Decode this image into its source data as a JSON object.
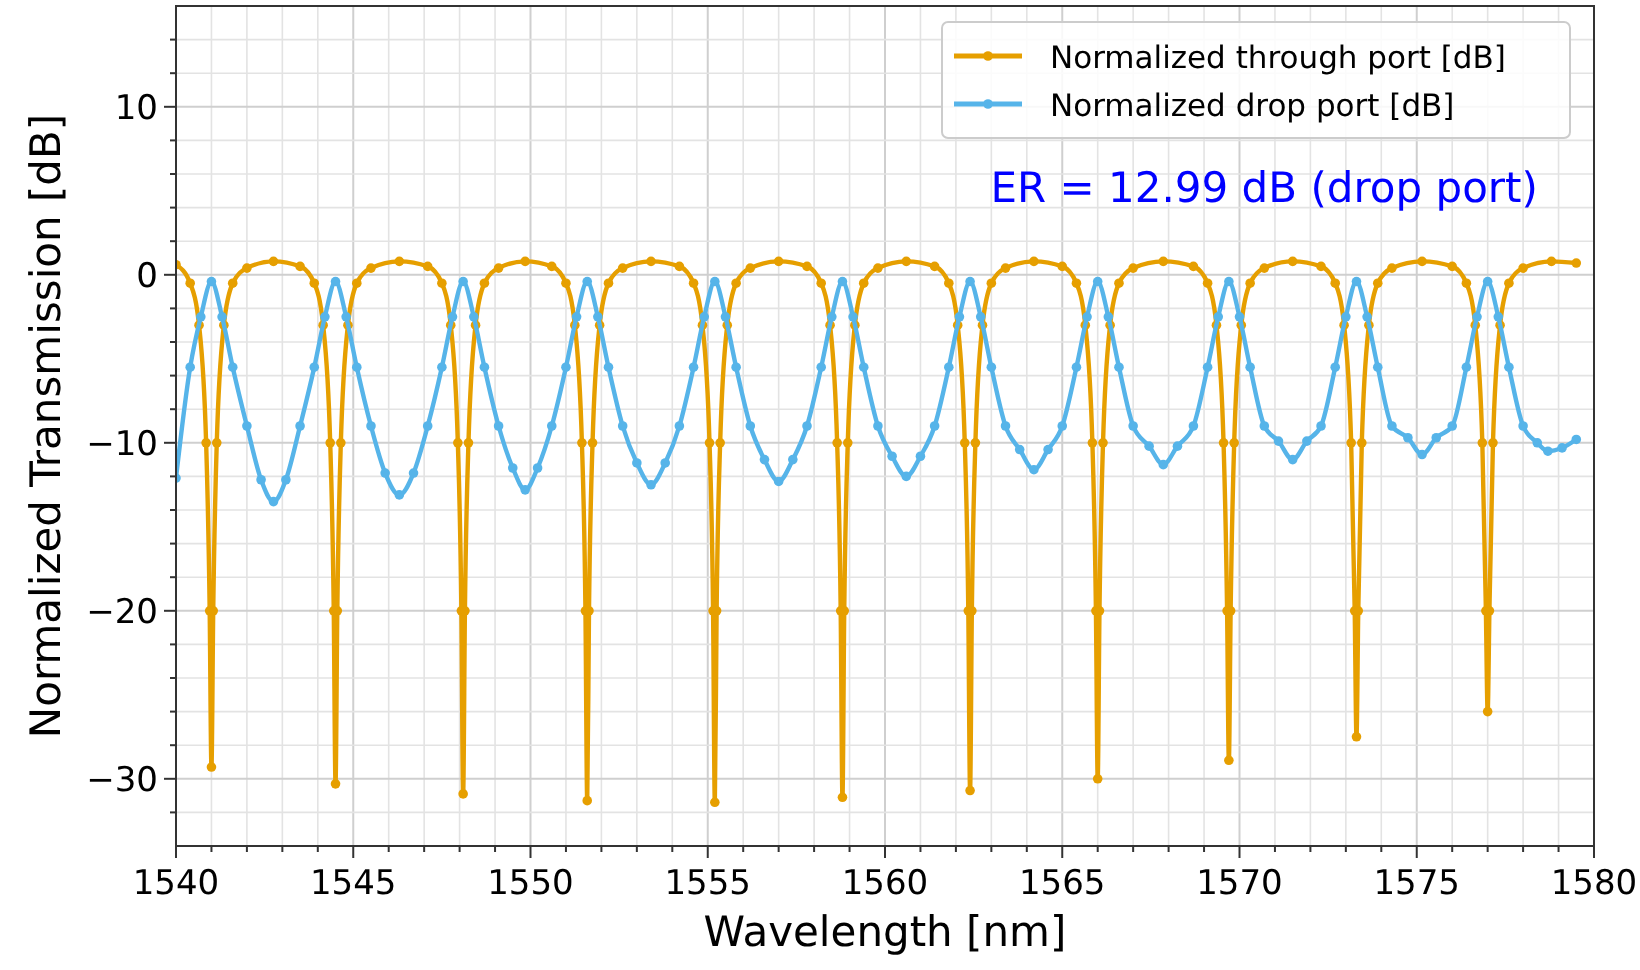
{
  "chart_data": {
    "type": "line",
    "xlabel": "Wavelength [nm]",
    "ylabel": "Normalized Transmission [dB]",
    "xlim": [
      1540,
      1580
    ],
    "ylim": [
      -34,
      16
    ],
    "xticks": [
      1540,
      {
        "value": 1541,
        "label": null
      },
      {
        "value": 1542,
        "label": null
      },
      {
        "value": 1543,
        "label": null
      },
      {
        "value": 1544,
        "label": null
      },
      1545,
      {
        "value": 1546,
        "label": null
      },
      {
        "value": 1547,
        "label": null
      },
      {
        "value": 1548,
        "label": null
      },
      {
        "value": 1549,
        "label": null
      },
      1550,
      {
        "value": 1551,
        "label": null
      },
      {
        "value": 1552,
        "label": null
      },
      {
        "value": 1553,
        "label": null
      },
      {
        "value": 1554,
        "label": null
      },
      1555,
      {
        "value": 1556,
        "label": null
      },
      {
        "value": 1557,
        "label": null
      },
      {
        "value": 1558,
        "label": null
      },
      {
        "value": 1559,
        "label": null
      },
      1560,
      {
        "value": 1561,
        "label": null
      },
      {
        "value": 1562,
        "label": null
      },
      {
        "value": 1563,
        "label": null
      },
      {
        "value": 1564,
        "label": null
      },
      1565,
      {
        "value": 1566,
        "label": null
      },
      {
        "value": 1567,
        "label": null
      },
      {
        "value": 1568,
        "label": null
      },
      {
        "value": 1569,
        "label": null
      },
      1570,
      {
        "value": 1571,
        "label": null
      },
      {
        "value": 1572,
        "label": null
      },
      {
        "value": 1573,
        "label": null
      },
      {
        "value": 1574,
        "label": null
      },
      1575,
      {
        "value": 1576,
        "label": null
      },
      {
        "value": 1577,
        "label": null
      },
      {
        "value": 1578,
        "label": null
      },
      {
        "value": 1579,
        "label": null
      },
      1580
    ],
    "yticks": [
      {
        "value": -32,
        "label": null
      },
      {
        "value": -30,
        "label": "−30"
      },
      {
        "value": -28,
        "label": null
      },
      {
        "value": -26,
        "label": null
      },
      {
        "value": -24,
        "label": null
      },
      {
        "value": -22,
        "label": null
      },
      {
        "value": -20,
        "label": "−20"
      },
      {
        "value": -18,
        "label": null
      },
      {
        "value": -16,
        "label": null
      },
      {
        "value": -14,
        "label": null
      },
      {
        "value": -12,
        "label": null
      },
      {
        "value": -10,
        "label": "−10"
      },
      {
        "value": -8,
        "label": null
      },
      {
        "value": -6,
        "label": null
      },
      {
        "value": -4,
        "label": null
      },
      {
        "value": -2,
        "label": null
      },
      0,
      {
        "value": 2,
        "label": null
      },
      {
        "value": 4,
        "label": null
      },
      {
        "value": 6,
        "label": null
      },
      {
        "value": 8,
        "label": null
      },
      10,
      {
        "value": 12,
        "label": null
      },
      {
        "value": 14,
        "label": null
      }
    ],
    "grid": true,
    "legend": "top right",
    "marker": "circle",
    "line_style": "solid",
    "annotations": [
      "ER = 12.99 dB (drop port)"
    ],
    "series": [
      {
        "name": "Normalized through port [dB]",
        "color": "#e69f00",
        "x": [
          1540.0,
          1540.4,
          1540.65,
          1540.85,
          1540.95,
          1541.0,
          1541.05,
          1541.15,
          1541.35,
          1541.6,
          1542.0,
          1542.75,
          1543.5,
          1543.9,
          1544.15,
          1544.35,
          1544.45,
          1544.5,
          1544.55,
          1544.65,
          1544.85,
          1545.1,
          1545.5,
          1546.3,
          1547.1,
          1547.5,
          1547.75,
          1547.95,
          1548.05,
          1548.1,
          1548.15,
          1548.25,
          1548.45,
          1548.7,
          1549.1,
          1549.85,
          1550.6,
          1551.0,
          1551.25,
          1551.45,
          1551.55,
          1551.6,
          1551.65,
          1551.75,
          1551.95,
          1552.2,
          1552.6,
          1553.4,
          1554.2,
          1554.6,
          1554.85,
          1555.05,
          1555.15,
          1555.2,
          1555.25,
          1555.35,
          1555.55,
          1555.8,
          1556.2,
          1557.0,
          1557.8,
          1558.2,
          1558.45,
          1558.65,
          1558.75,
          1558.8,
          1558.85,
          1558.95,
          1559.15,
          1559.4,
          1559.8,
          1560.6,
          1561.4,
          1561.8,
          1562.05,
          1562.25,
          1562.35,
          1562.4,
          1562.45,
          1562.55,
          1562.75,
          1563.0,
          1563.4,
          1564.2,
          1565.0,
          1565.4,
          1565.65,
          1565.85,
          1565.95,
          1566.0,
          1566.05,
          1566.15,
          1566.35,
          1566.6,
          1567.0,
          1567.85,
          1568.7,
          1569.1,
          1569.35,
          1569.55,
          1569.65,
          1569.7,
          1569.75,
          1569.85,
          1570.05,
          1570.3,
          1570.7,
          1571.5,
          1572.3,
          1572.7,
          1572.95,
          1573.15,
          1573.25,
          1573.3,
          1573.35,
          1573.45,
          1573.65,
          1573.9,
          1574.3,
          1575.15,
          1576.0,
          1576.4,
          1576.65,
          1576.85,
          1576.95,
          1577.0,
          1577.05,
          1577.15,
          1577.35,
          1577.6,
          1578.0,
          1578.8,
          1579.5
        ],
        "values": [
          0.6,
          -0.5,
          -3,
          -10,
          -20,
          -29.3,
          -20,
          -10,
          -3,
          -0.5,
          0.4,
          0.8,
          0.5,
          -0.5,
          -3,
          -10,
          -20,
          -30.3,
          -20,
          -10,
          -3,
          -0.5,
          0.4,
          0.8,
          0.5,
          -0.5,
          -3,
          -10,
          -20,
          -30.9,
          -20,
          -10,
          -3,
          -0.5,
          0.4,
          0.8,
          0.5,
          -0.5,
          -3,
          -10,
          -20,
          -31.3,
          -20,
          -10,
          -3,
          -0.5,
          0.4,
          0.8,
          0.5,
          -0.5,
          -3,
          -10,
          -20,
          -31.4,
          -20,
          -10,
          -3,
          -0.5,
          0.4,
          0.8,
          0.5,
          -0.5,
          -3,
          -10,
          -20,
          -31.1,
          -20,
          -10,
          -3,
          -0.5,
          0.4,
          0.8,
          0.5,
          -0.5,
          -3,
          -10,
          -20,
          -30.7,
          -20,
          -10,
          -3,
          -0.5,
          0.4,
          0.8,
          0.5,
          -0.5,
          -3,
          -10,
          -20,
          -30.0,
          -20,
          -10,
          -3,
          -0.5,
          0.4,
          0.8,
          0.5,
          -0.5,
          -3,
          -10,
          -20,
          -28.9,
          -20,
          -10,
          -3,
          -0.5,
          0.4,
          0.8,
          0.5,
          -0.5,
          -3,
          -10,
          -20,
          -27.5,
          -20,
          -10,
          -3,
          -0.5,
          0.4,
          0.8,
          0.5,
          -0.5,
          -3,
          -10,
          -20,
          -26.0,
          -20,
          -10,
          -3,
          -0.5,
          0.4,
          0.8,
          0.7
        ]
      },
      {
        "name": "Normalized drop port [dB]",
        "color": "#56b4e9",
        "x": [
          1540.0,
          1540.4,
          1540.7,
          1541.0,
          1541.3,
          1541.6,
          1542.0,
          1542.4,
          1542.75,
          1543.1,
          1543.5,
          1543.9,
          1544.2,
          1544.5,
          1544.8,
          1545.1,
          1545.5,
          1545.9,
          1546.3,
          1546.7,
          1547.1,
          1547.5,
          1547.8,
          1548.1,
          1548.4,
          1548.7,
          1549.1,
          1549.5,
          1549.85,
          1550.2,
          1550.6,
          1551.0,
          1551.3,
          1551.6,
          1551.9,
          1552.2,
          1552.6,
          1553.0,
          1553.4,
          1553.8,
          1554.2,
          1554.6,
          1554.9,
          1555.2,
          1555.5,
          1555.8,
          1556.2,
          1556.6,
          1557.0,
          1557.4,
          1557.8,
          1558.2,
          1558.5,
          1558.8,
          1559.1,
          1559.4,
          1559.8,
          1560.2,
          1560.6,
          1561.0,
          1561.4,
          1561.8,
          1562.1,
          1562.4,
          1562.7,
          1563.0,
          1563.4,
          1563.8,
          1564.2,
          1564.6,
          1565.0,
          1565.4,
          1565.7,
          1566.0,
          1566.3,
          1566.6,
          1567.0,
          1567.45,
          1567.85,
          1568.25,
          1568.7,
          1569.1,
          1569.4,
          1569.7,
          1570.0,
          1570.3,
          1570.7,
          1571.1,
          1571.5,
          1571.9,
          1572.3,
          1572.7,
          1573.0,
          1573.3,
          1573.6,
          1573.9,
          1574.3,
          1574.75,
          1575.15,
          1575.55,
          1576.0,
          1576.4,
          1576.7,
          1577.0,
          1577.3,
          1577.6,
          1578.0,
          1578.4,
          1578.7,
          1579.1,
          1579.5
        ],
        "values": [
          -12.1,
          -5.5,
          -2.5,
          -0.4,
          -2.5,
          -5.5,
          -9,
          -12.2,
          -13.5,
          -12.2,
          -9,
          -5.5,
          -2.5,
          -0.4,
          -2.5,
          -5.5,
          -9,
          -11.8,
          -13.1,
          -11.8,
          -9,
          -5.5,
          -2.5,
          -0.4,
          -2.5,
          -5.5,
          -9,
          -11.5,
          -12.8,
          -11.5,
          -9,
          -5.5,
          -2.5,
          -0.4,
          -2.5,
          -5.5,
          -9,
          -11.2,
          -12.5,
          -11.2,
          -9,
          -5.5,
          -2.5,
          -0.4,
          -2.5,
          -5.5,
          -9,
          -11.0,
          -12.3,
          -11.0,
          -9,
          -5.5,
          -2.5,
          -0.4,
          -2.5,
          -5.5,
          -9,
          -10.8,
          -12.0,
          -10.8,
          -9,
          -5.5,
          -2.5,
          -0.4,
          -2.5,
          -5.5,
          -9,
          -10.4,
          -11.6,
          -10.4,
          -9,
          -5.5,
          -2.5,
          -0.4,
          -2.5,
          -5.5,
          -9,
          -10.2,
          -11.3,
          -10.2,
          -9,
          -5.5,
          -2.5,
          -0.4,
          -2.5,
          -5.5,
          -9,
          -9.9,
          -11.0,
          -9.9,
          -9,
          -5.5,
          -2.5,
          -0.4,
          -2.5,
          -5.5,
          -9,
          -9.7,
          -10.7,
          -9.7,
          -9,
          -5.5,
          -2.5,
          -0.4,
          -2.5,
          -5.5,
          -9,
          -10.0,
          -10.5,
          -10.3,
          -9.8
        ]
      }
    ]
  }
}
